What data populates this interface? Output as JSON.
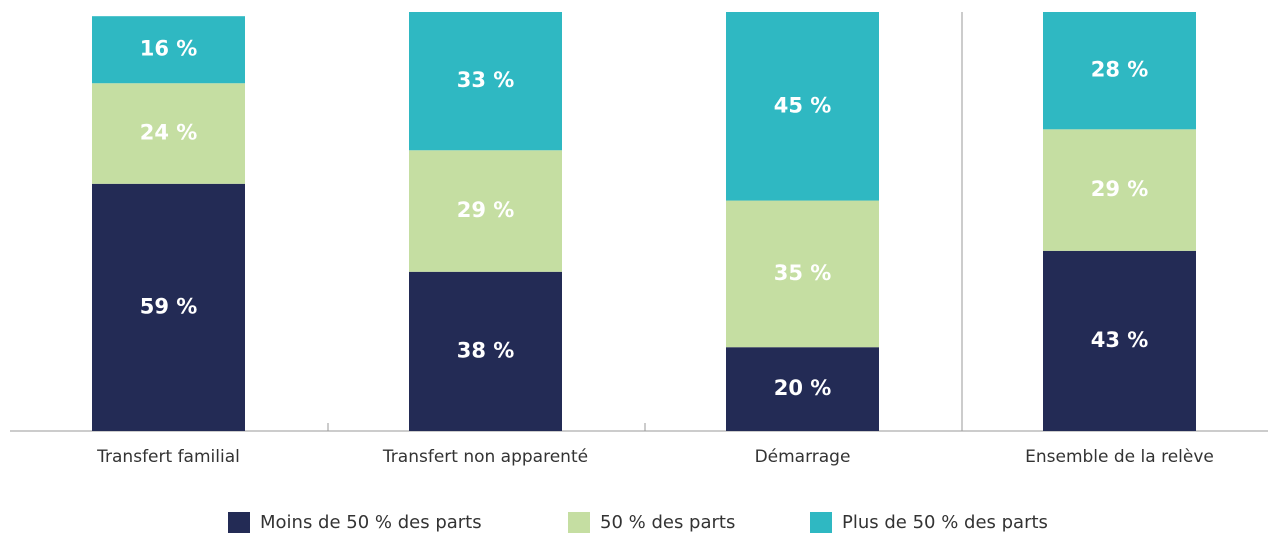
{
  "chart_data": {
    "type": "stacked_bar",
    "categories": [
      "Transfert familial",
      "Transfert non apparenté",
      "Démarrage",
      "Ensemble de la relève"
    ],
    "series": [
      {
        "name": "Moins de 50 % des parts",
        "color": "#232b55",
        "values": [
          59,
          38,
          20,
          43
        ],
        "value_labels": [
          "59 %",
          "38 %",
          "20 %",
          "43 %"
        ]
      },
      {
        "name": "50 % des parts",
        "color": "#c5dea2",
        "values": [
          24,
          29,
          35,
          29
        ],
        "value_labels": [
          "24 %",
          "29 %",
          "35 %",
          "29 %"
        ]
      },
      {
        "name": "Plus de 50 % des parts",
        "color": "#2fb8c2",
        "values": [
          16,
          33,
          45,
          28
        ],
        "value_labels": [
          "16 %",
          "33 %",
          "45 %",
          "28 %"
        ]
      }
    ],
    "ylim": [
      0,
      100
    ]
  }
}
